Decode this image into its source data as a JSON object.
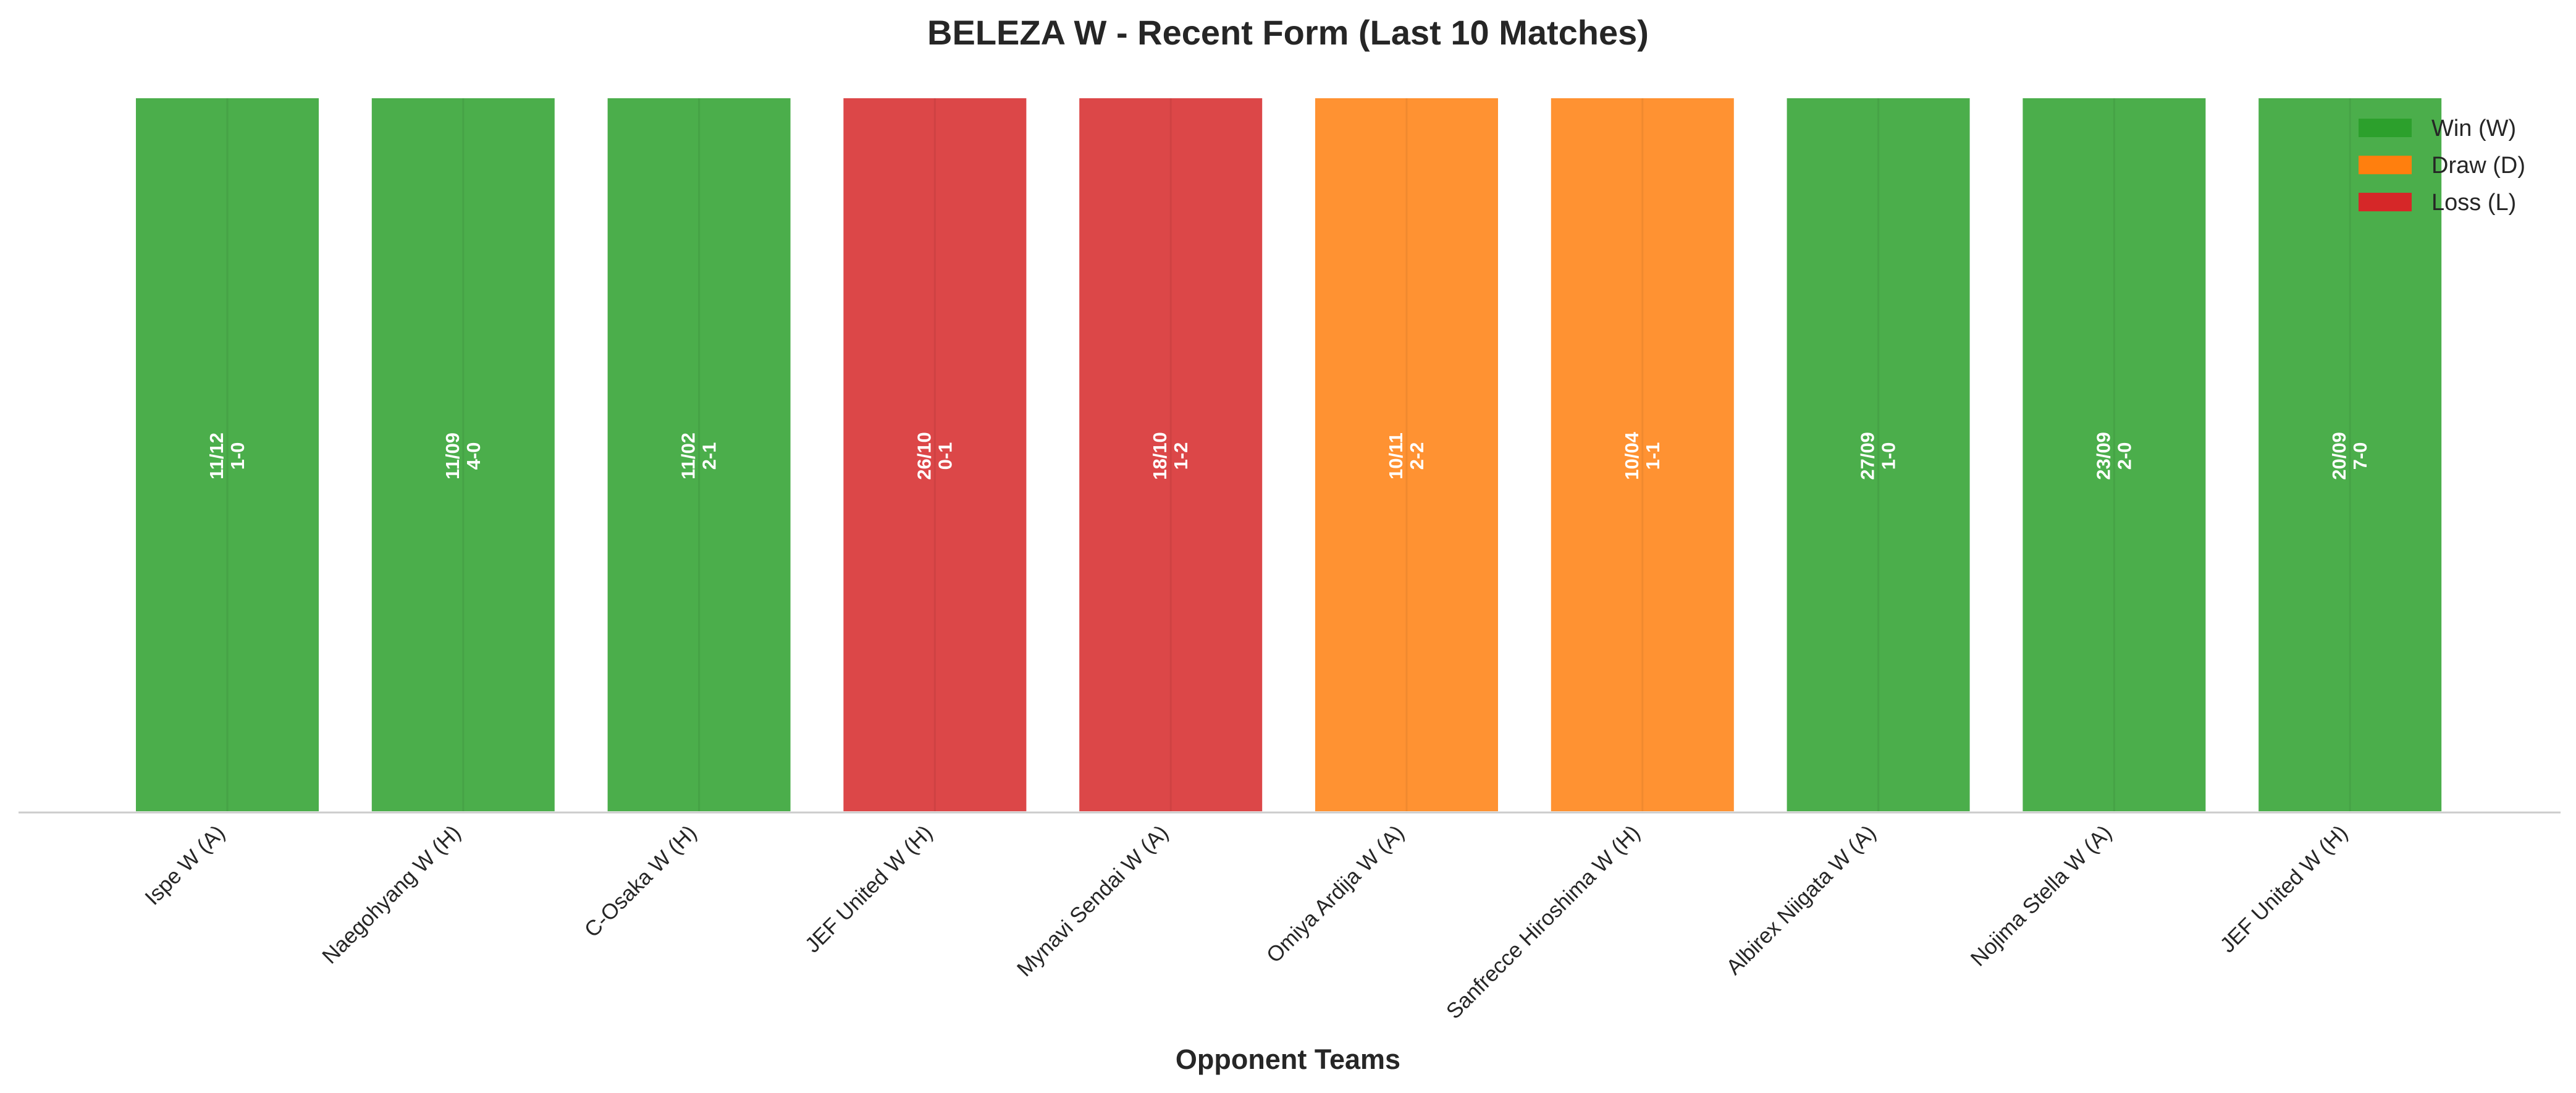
{
  "chart_data": {
    "type": "bar",
    "title": "BELEZA W - Recent Form (Last 10 Matches)",
    "xlabel": "Opponent Teams",
    "ylabel": "",
    "ylim": [
      0,
      1
    ],
    "grid": false,
    "legend_position": "top-right",
    "categories": [
      "Ispe W (A)",
      "Naegohyang W (H)",
      "C-Osaka W (H)",
      "JEF United W (H)",
      "Mynavi Sendai W (A)",
      "Omiya Ardija W (A)",
      "Sanfrecce Hiroshima W (H)",
      "Albirex Niigata W (A)",
      "Nojima Stella W (A)",
      "JEF United W (H)"
    ],
    "values": [
      1,
      1,
      1,
      1,
      1,
      1,
      1,
      1,
      1,
      1
    ],
    "results": [
      "W",
      "W",
      "W",
      "L",
      "L",
      "D",
      "D",
      "W",
      "W",
      "W"
    ],
    "dates": [
      "11/12",
      "11/09",
      "11/02",
      "26/10",
      "18/10",
      "10/11",
      "10/04",
      "27/09",
      "23/09",
      "20/09"
    ],
    "scores": [
      "1-0",
      "4-0",
      "2-1",
      "0-1",
      "1-2",
      "2-2",
      "1-1",
      "1-0",
      "2-0",
      "7-0"
    ],
    "legend": [
      {
        "key": "W",
        "label": "Win (W)",
        "color": "#2ca02c"
      },
      {
        "key": "D",
        "label": "Draw (D)",
        "color": "#ff7f0e"
      },
      {
        "key": "L",
        "label": "Loss (L)",
        "color": "#d62728"
      }
    ],
    "colors": {
      "W": "#2ca02c",
      "D": "#ff7f0e",
      "L": "#d62728"
    }
  }
}
